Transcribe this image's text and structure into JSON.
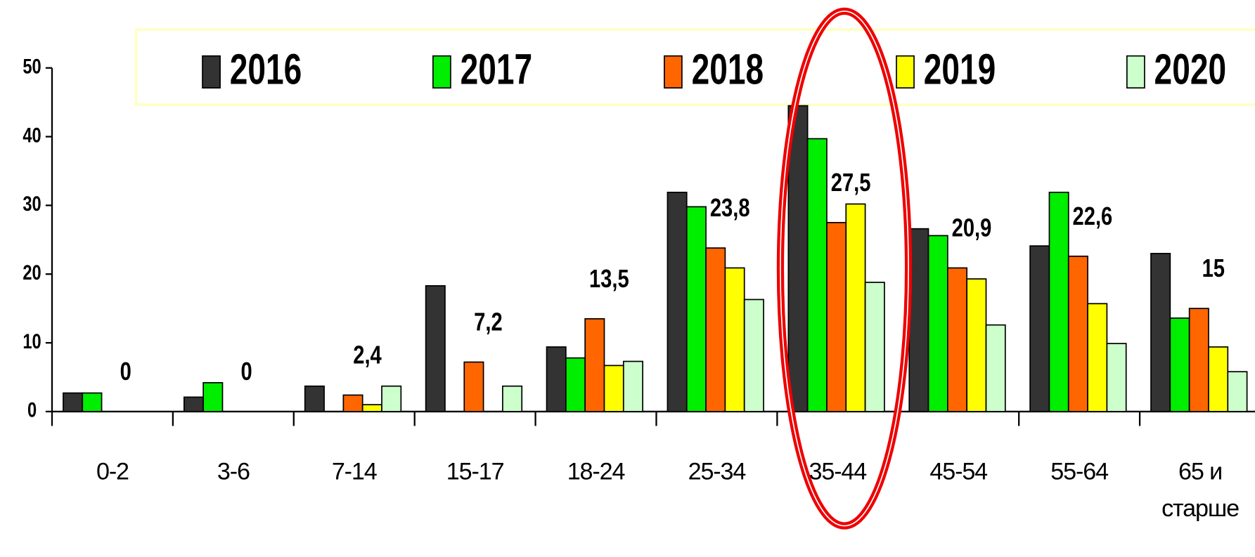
{
  "chart_data": {
    "type": "bar",
    "categories": [
      "0-2",
      "3-6",
      "7-14",
      "15-17",
      "18-24",
      "25-34",
      "35-44",
      "45-54",
      "55-64",
      "65 и старше"
    ],
    "series": [
      {
        "name": "2016",
        "color": "#333333",
        "values": [
          2.7,
          2.1,
          3.7,
          18.3,
          9.4,
          31.9,
          44.5,
          26.6,
          24.1,
          23.0
        ]
      },
      {
        "name": "2017",
        "color": "#00ee00",
        "values": [
          2.7,
          4.2,
          0,
          0,
          7.8,
          29.8,
          39.7,
          25.6,
          31.9,
          13.6
        ]
      },
      {
        "name": "2018",
        "color": "#ff6600",
        "values": [
          0,
          0,
          2.4,
          7.2,
          13.5,
          23.8,
          27.5,
          20.9,
          22.6,
          15
        ],
        "value_labels": [
          "0",
          "0",
          "2,4",
          "7,2",
          "13,5",
          "23,8",
          "27,5",
          "20,9",
          "22,6",
          "15"
        ]
      },
      {
        "name": "2019",
        "color": "#ffff00",
        "values": [
          0,
          0,
          1.0,
          0,
          6.7,
          20.9,
          30.2,
          19.3,
          15.7,
          9.4
        ]
      },
      {
        "name": "2020",
        "color": "#ccffcc",
        "values": [
          0,
          0,
          3.7,
          3.7,
          7.3,
          16.3,
          18.8,
          12.6,
          9.9,
          5.8
        ]
      }
    ],
    "ylim": [
      0,
      50
    ],
    "yticks": [
      0,
      10,
      20,
      30,
      40,
      50
    ],
    "legend": "top"
  }
}
